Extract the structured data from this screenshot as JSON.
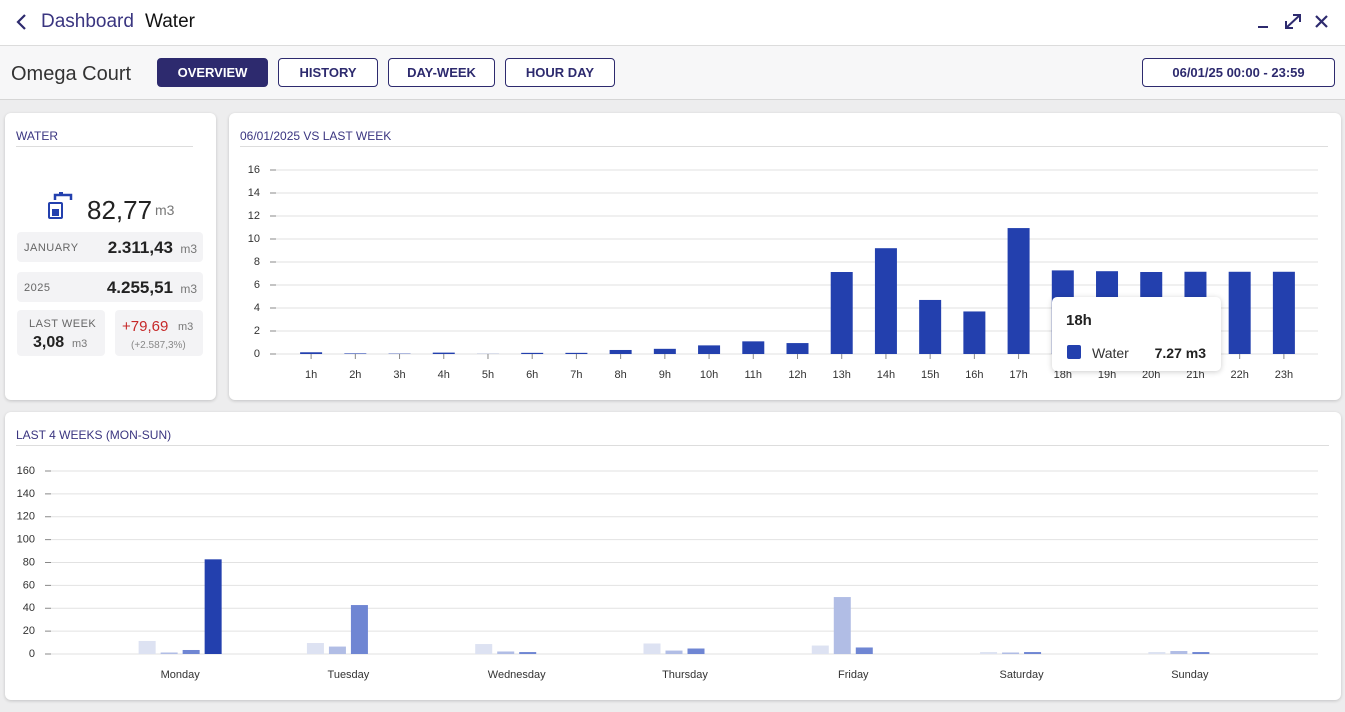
{
  "header": {
    "back_label": "Dashboard",
    "title": "Water"
  },
  "toolbar": {
    "site": "Omega Court",
    "tabs": [
      {
        "label": "OVERVIEW",
        "active": true
      },
      {
        "label": "HISTORY",
        "active": false
      },
      {
        "label": "DAY-WEEK",
        "active": false
      },
      {
        "label": "HOUR DAY",
        "active": false
      }
    ],
    "date_range": "06/01/25 00:00 - 23:59"
  },
  "water_panel": {
    "title": "WATER",
    "total": "82,77",
    "unit": "m3",
    "rows": [
      {
        "label": "JANUARY",
        "value": "2.311,43",
        "unit": "m3"
      },
      {
        "label": "2025",
        "value": "4.255,51",
        "unit": "m3"
      }
    ],
    "last_week": {
      "label": "LAST WEEK",
      "value": "3,08",
      "unit": "m3"
    },
    "change": {
      "value": "+79,69",
      "unit": "m3",
      "percent": "(+2.587,3%)"
    }
  },
  "chart_data": [
    {
      "type": "bar",
      "title": "06/01/2025 VS LAST WEEK",
      "categories": [
        "1h",
        "2h",
        "3h",
        "4h",
        "5h",
        "6h",
        "7h",
        "8h",
        "9h",
        "10h",
        "11h",
        "12h",
        "13h",
        "14h",
        "15h",
        "16h",
        "17h",
        "18h",
        "19h",
        "20h",
        "21h",
        "22h",
        "23h"
      ],
      "series": [
        {
          "name": "Water",
          "color": "#2340ae",
          "values": [
            0.15,
            0.05,
            0.03,
            0.12,
            0.01,
            0.1,
            0.1,
            0.35,
            0.45,
            0.75,
            1.1,
            0.95,
            7.13,
            9.2,
            4.7,
            3.7,
            10.95,
            7.27,
            7.2,
            7.13,
            7.15,
            7.15,
            7.15
          ]
        }
      ],
      "ylim": [
        0,
        16
      ],
      "yticks": [
        0,
        2,
        4,
        6,
        8,
        10,
        12,
        14,
        16
      ],
      "grid": true,
      "tooltip": {
        "value_label": "7.27 m3"
      }
    },
    {
      "type": "bar",
      "title": "LAST 4 WEEKS (MON-SUN)",
      "categories": [
        "Monday",
        "Tuesday",
        "Wednesday",
        "Thursday",
        "Friday",
        "Saturday",
        "Sunday"
      ],
      "series": [
        {
          "color": "#dde2f2",
          "values": [
            11.4,
            9.6,
            8.7,
            9.2,
            7.4,
            1.7,
            1.7
          ]
        },
        {
          "color": "#b1bde5",
          "values": [
            1.3,
            6.5,
            2.2,
            3,
            49.8,
            1.3,
            2.6
          ]
        },
        {
          "color": "#6f86d3",
          "values": [
            3.5,
            42.8,
            1.7,
            4.8,
            5.7,
            1.7,
            1.7
          ]
        },
        {
          "color": "#2340ae",
          "values": [
            82.77,
            null,
            null,
            null,
            null,
            null,
            null
          ]
        }
      ],
      "ylim": [
        0,
        160
      ],
      "yticks": [
        0,
        20,
        40,
        60,
        80,
        100,
        120,
        140,
        160
      ],
      "grid": true
    }
  ]
}
